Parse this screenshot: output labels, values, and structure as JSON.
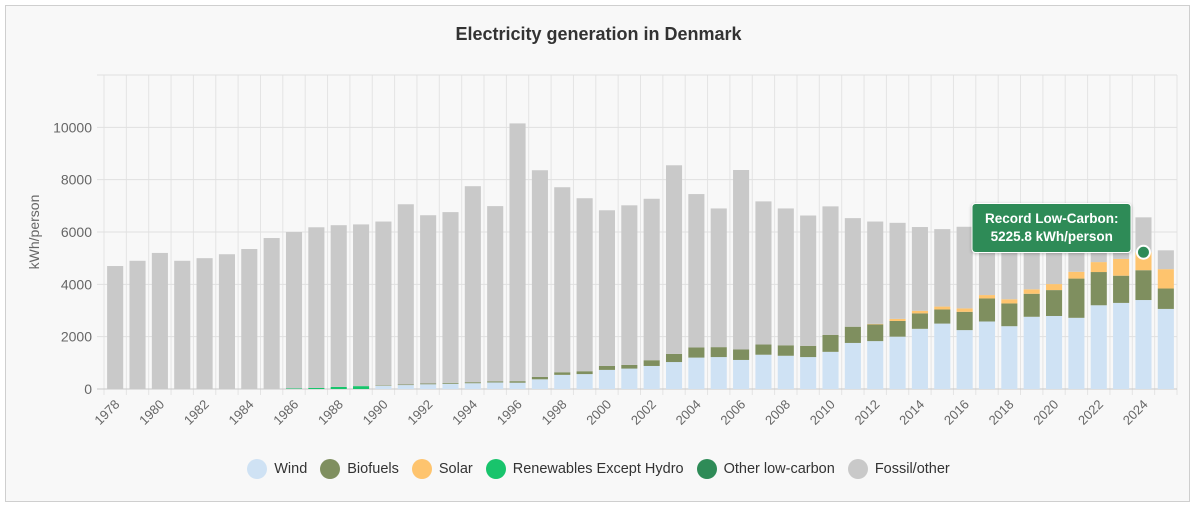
{
  "chart_data": {
    "type": "bar",
    "stacked": true,
    "title": "Electricity generation in Denmark",
    "ylabel": "kWh/person",
    "ylim": [
      0,
      12000
    ],
    "yticks": [
      0,
      2000,
      4000,
      6000,
      8000,
      10000
    ],
    "x": [
      1978,
      1979,
      1980,
      1981,
      1982,
      1983,
      1984,
      1985,
      1986,
      1987,
      1988,
      1989,
      1990,
      1991,
      1992,
      1993,
      1994,
      1995,
      1996,
      1997,
      1998,
      1999,
      2000,
      2001,
      2002,
      2003,
      2004,
      2005,
      2006,
      2007,
      2008,
      2009,
      2010,
      2011,
      2012,
      2013,
      2014,
      2015,
      2016,
      2017,
      2018,
      2019,
      2020,
      2021,
      2022,
      2023,
      2024,
      2025
    ],
    "xtick_labels": [
      "1978",
      "1980",
      "1982",
      "1984",
      "1986",
      "1988",
      "1990",
      "1992",
      "1994",
      "1996",
      "1998",
      "2000",
      "2002",
      "2004",
      "2006",
      "2008",
      "2010",
      "2012",
      "2014",
      "2016",
      "2018",
      "2020",
      "2022",
      "2024"
    ],
    "series": [
      {
        "name": "Wind",
        "color": "#cfe2f4",
        "values": [
          0,
          0,
          0,
          0,
          0,
          0,
          0,
          0,
          0,
          0,
          0,
          0,
          120,
          150,
          180,
          200,
          220,
          250,
          240,
          370,
          540,
          570,
          730,
          780,
          880,
          1030,
          1200,
          1220,
          1110,
          1310,
          1270,
          1220,
          1420,
          1760,
          1830,
          2000,
          2300,
          2500,
          2250,
          2580,
          2400,
          2760,
          2790,
          2720,
          3200,
          3290,
          3400,
          3060
        ]
      },
      {
        "name": "Biofuels",
        "color": "#7f8f5f",
        "values": [
          0,
          0,
          0,
          0,
          0,
          0,
          0,
          0,
          0,
          0,
          0,
          0,
          20,
          25,
          30,
          35,
          40,
          45,
          60,
          90,
          100,
          110,
          150,
          140,
          220,
          310,
          390,
          380,
          400,
          390,
          400,
          430,
          650,
          620,
          640,
          600,
          590,
          540,
          700,
          880,
          870,
          880,
          990,
          1500,
          1270,
          1040,
          1140,
          780
        ]
      },
      {
        "name": "Solar",
        "color": "#fec46e",
        "values": [
          0,
          0,
          0,
          0,
          0,
          0,
          0,
          0,
          0,
          0,
          0,
          0,
          0,
          0,
          0,
          0,
          0,
          0,
          0,
          0,
          0,
          0,
          0,
          0,
          0,
          0,
          0,
          0,
          0,
          0,
          0,
          0,
          0,
          0,
          20,
          80,
          100,
          110,
          130,
          130,
          160,
          170,
          230,
          260,
          380,
          640,
          685.8,
          740
        ]
      },
      {
        "name": "Renewables Except Hydro",
        "color": "#18c46c",
        "values": [
          0,
          0,
          0,
          0,
          0,
          0,
          0,
          0,
          20,
          40,
          80,
          110,
          0,
          0,
          0,
          0,
          0,
          0,
          0,
          0,
          0,
          0,
          0,
          0,
          0,
          0,
          0,
          0,
          0,
          0,
          0,
          0,
          0,
          0,
          0,
          0,
          0,
          0,
          0,
          0,
          0,
          0,
          0,
          0,
          0,
          0,
          0,
          0
        ]
      },
      {
        "name": "Other low-carbon",
        "color": "#2e8b57",
        "values": [
          0,
          0,
          0,
          0,
          0,
          0,
          0,
          0,
          0,
          0,
          0,
          0,
          0,
          0,
          0,
          0,
          0,
          0,
          0,
          0,
          0,
          0,
          0,
          0,
          0,
          0,
          0,
          0,
          0,
          0,
          0,
          0,
          0,
          0,
          0,
          0,
          0,
          0,
          0,
          0,
          0,
          0,
          0,
          0,
          0,
          0,
          0,
          0
        ]
      },
      {
        "name": "Fossil/other",
        "color": "#c9c9c9",
        "values": [
          4700,
          4900,
          5200,
          4900,
          5000,
          5150,
          5350,
          5770,
          5980,
          6140,
          6180,
          6180,
          6260,
          6885,
          6430,
          6525,
          7490,
          6695,
          9850,
          7900,
          7070,
          6610,
          5950,
          6100,
          6170,
          7210,
          5860,
          5300,
          6860,
          5470,
          5230,
          4980,
          4910,
          4150,
          3910,
          3670,
          3200,
          2960,
          3120,
          2460,
          2520,
          1790,
          1490,
          1320,
          1050,
          1230,
          1334.2,
          720
        ]
      }
    ],
    "legend_position": "bottom",
    "annotation": {
      "year": 2024,
      "value": 5225.8,
      "label": "Record Low-Carbon:",
      "value_text": "5225.8 kWh/person",
      "color": "#2e8b57"
    }
  }
}
